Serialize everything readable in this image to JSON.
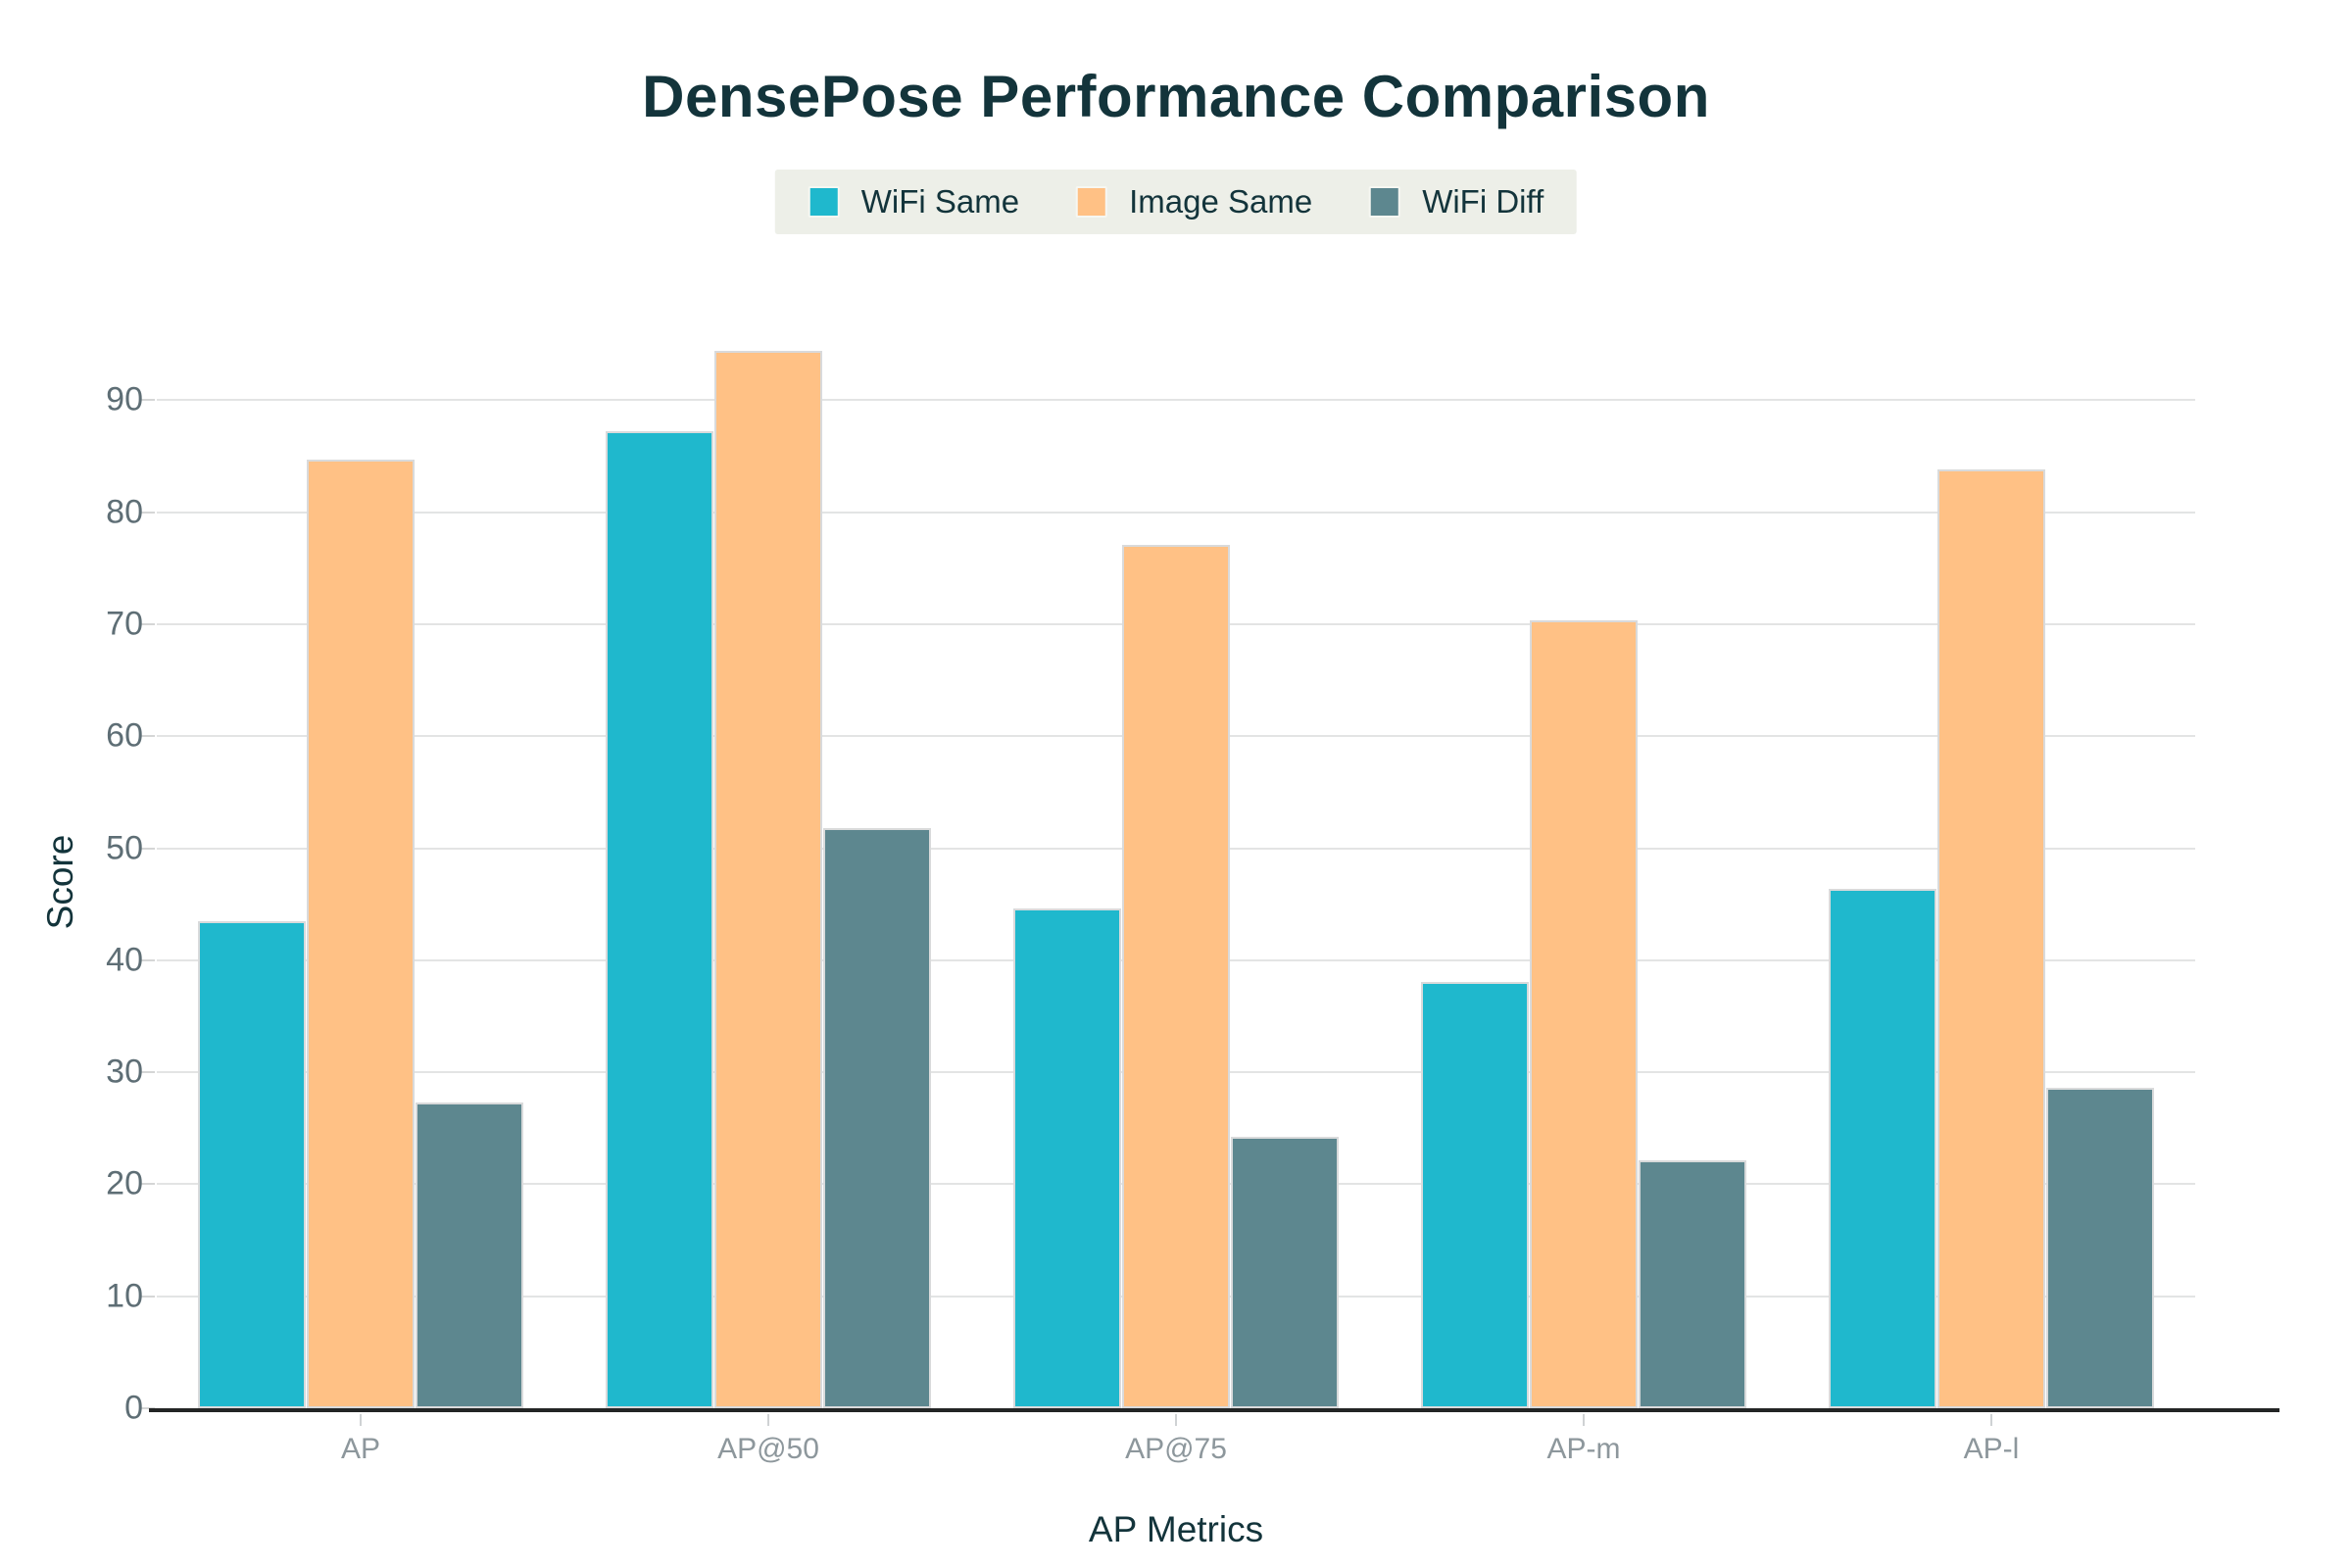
{
  "chart_data": {
    "type": "bar",
    "title": "DensePose Performance Comparison",
    "xlabel": "AP Metrics",
    "ylabel": "Score",
    "categories": [
      "AP",
      "AP@50",
      "AP@75",
      "AP-m",
      "AP-l"
    ],
    "series": [
      {
        "name": "WiFi Same",
        "color": "#1FB8CD",
        "values": [
          43.5,
          87.2,
          44.6,
          38.1,
          46.4
        ]
      },
      {
        "name": "Image Same",
        "color": "#FFC185",
        "values": [
          84.7,
          94.4,
          77.1,
          70.3,
          83.8
        ]
      },
      {
        "name": "WiFi Diff",
        "color": "#5D878F",
        "values": [
          27.3,
          51.8,
          24.2,
          22.1,
          28.6
        ]
      }
    ],
    "ylim": [
      0,
      100
    ],
    "yticks": [
      0,
      10,
      20,
      30,
      40,
      50,
      60,
      70,
      80,
      90
    ],
    "grid": true,
    "legend_position": "top-center"
  },
  "colors": {
    "title_text": "#13343B",
    "axis_title_text": "#13343B",
    "ytick_text": "#5E6E75",
    "xtick_text": "#8D979C",
    "gridline": "#E3E4E4",
    "axis_line": "#232525",
    "legend_background": "#EDEFE8",
    "page_background": "#FFFFFF"
  }
}
